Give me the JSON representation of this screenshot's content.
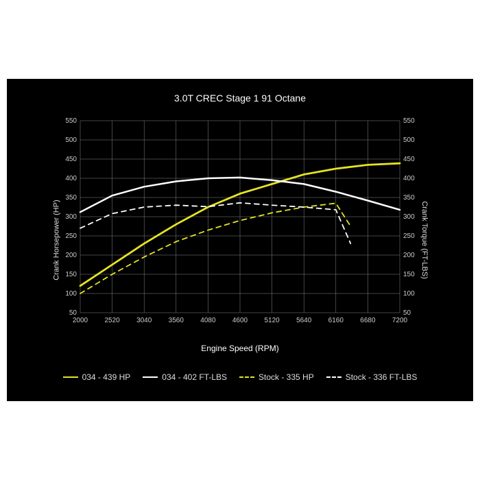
{
  "chart": {
    "type": "line",
    "title": "3.0T CREC Stage 1 91 Octane",
    "title_fontsize": 14,
    "background_color": "#000000",
    "page_background": "#ffffff",
    "text_color": "#ffffff",
    "tick_color": "#cccccc",
    "grid_color": "#888888",
    "grid_width": 0.5,
    "x": {
      "label": "Engine Speed (RPM)",
      "min": 2000,
      "max": 7200,
      "tick_step": 520,
      "ticks": [
        2000,
        2520,
        3040,
        3560,
        4080,
        4600,
        5120,
        5640,
        6160,
        6680,
        7200
      ],
      "label_fontsize": 12
    },
    "y_left": {
      "label": "Crank Horsepower (HP)",
      "min": 50,
      "max": 550,
      "tick_step": 50,
      "ticks": [
        50,
        100,
        150,
        200,
        250,
        300,
        350,
        400,
        450,
        500,
        550
      ],
      "label_fontsize": 11
    },
    "y_right": {
      "label": "Crank Torque (FT-LBS)",
      "min": 50,
      "max": 550,
      "tick_step": 50,
      "ticks": [
        50,
        100,
        150,
        200,
        250,
        300,
        350,
        400,
        450,
        500,
        550
      ],
      "label_fontsize": 11
    },
    "series": [
      {
        "id": "hp_034",
        "label": "034 - 439 HP",
        "color": "#e6e323",
        "dash": "solid",
        "width": 2.8,
        "x": [
          2000,
          2520,
          3040,
          3560,
          4080,
          4600,
          5120,
          5640,
          6160,
          6680,
          7200
        ],
        "y": [
          120,
          175,
          230,
          280,
          325,
          360,
          385,
          410,
          425,
          435,
          439
        ]
      },
      {
        "id": "tq_034",
        "label": "034 - 402 FT-LBS",
        "color": "#ffffff",
        "dash": "solid",
        "width": 2.5,
        "x": [
          2000,
          2520,
          3040,
          3560,
          4080,
          4600,
          5120,
          5640,
          6160,
          6680,
          7200
        ],
        "y": [
          312,
          355,
          378,
          392,
          400,
          402,
          395,
          385,
          365,
          342,
          318
        ]
      },
      {
        "id": "hp_stock",
        "label": "Stock - 335 HP",
        "color": "#e6e323",
        "dash": "dashed",
        "width": 1.8,
        "x": [
          2000,
          2520,
          3040,
          3560,
          4080,
          4600,
          5120,
          5640,
          6160,
          6400
        ],
        "y": [
          100,
          150,
          195,
          235,
          265,
          290,
          310,
          325,
          335,
          275
        ]
      },
      {
        "id": "tq_stock",
        "label": "Stock - 336 FT-LBS",
        "color": "#ffffff",
        "dash": "dashed",
        "width": 1.8,
        "x": [
          2000,
          2520,
          3040,
          3560,
          4080,
          4600,
          5120,
          5640,
          6160,
          6400
        ],
        "y": [
          270,
          308,
          325,
          330,
          326,
          336,
          330,
          325,
          318,
          230
        ]
      }
    ],
    "legend_dash_segments": {
      "solid": "none",
      "dashed": "4 3"
    }
  }
}
